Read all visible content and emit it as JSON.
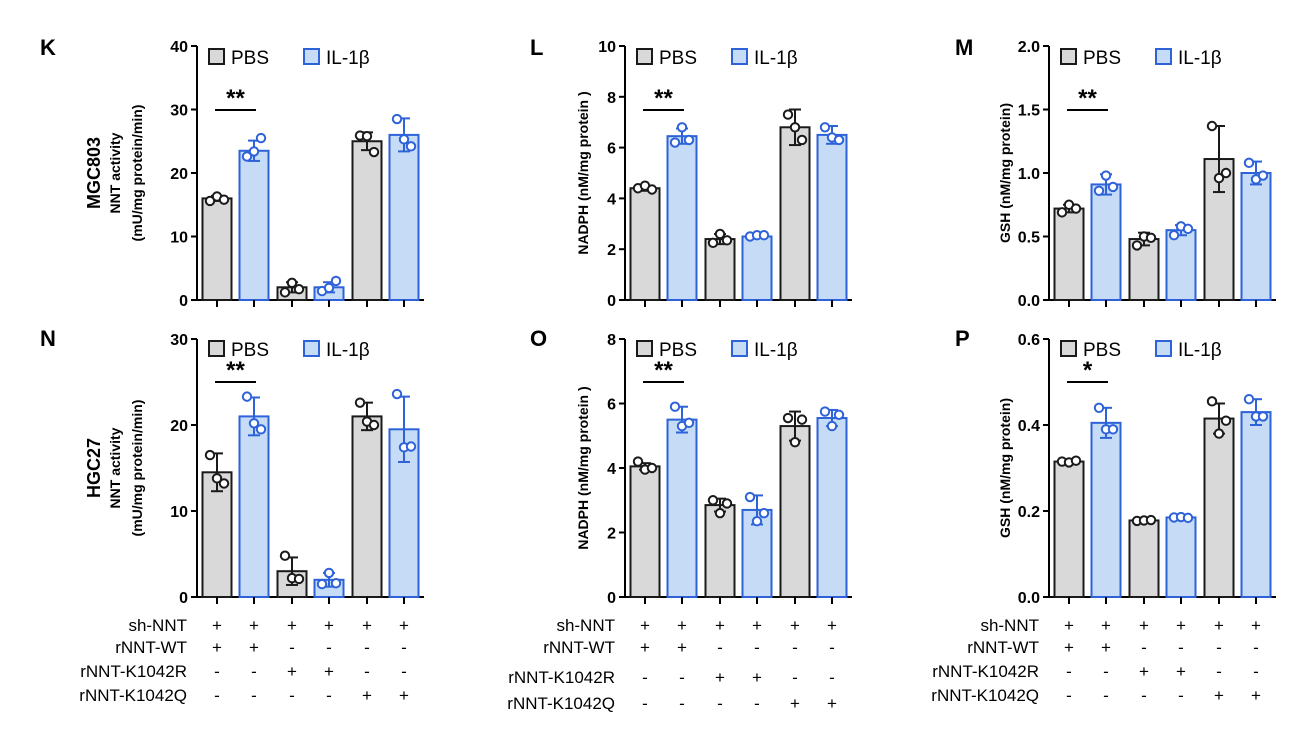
{
  "row_titles": [
    "MGC803",
    "HGC27"
  ],
  "legend": {
    "pbs": "PBS",
    "il1b": "IL-1β"
  },
  "colors": {
    "pbs_fill": "#d9d9d9",
    "pbs_stroke": "#1a1a1a",
    "il1b_fill": "#c6dcf6",
    "il1b_stroke": "#2e62d9"
  },
  "conditions": [
    {
      "label": "sh-NNT",
      "marks": [
        "+",
        "+",
        "+",
        "+",
        "+",
        "+"
      ]
    },
    {
      "label": "rNNT-WT",
      "marks": [
        "+",
        "+",
        "-",
        "-",
        "-",
        "-"
      ]
    },
    {
      "label": "rNNT-K1042R",
      "marks": [
        "-",
        "-",
        "+",
        "+",
        "-",
        "-"
      ]
    },
    {
      "label": "rNNT-K1042Q",
      "marks": [
        "-",
        "-",
        "-",
        "-",
        "+",
        "+"
      ]
    }
  ],
  "chart_data": [
    {
      "panel": "K",
      "type": "bar",
      "ylabel": [
        "NNT activity",
        "(mU/mg protein/min)"
      ],
      "ylim": [
        0,
        40
      ],
      "yticks": [
        "0",
        "10",
        "20",
        "30",
        "40"
      ],
      "groups": [
        "PBS",
        "IL-1β",
        "PBS",
        "IL-1β",
        "PBS",
        "IL-1β"
      ],
      "values": [
        16,
        23.5,
        2,
        2,
        25,
        26
      ],
      "errors": [
        0.4,
        1.6,
        0.8,
        0.8,
        1.4,
        2.6
      ],
      "points": [
        [
          15.6,
          16.3,
          15.8
        ],
        [
          22.6,
          23.4,
          25.5
        ],
        [
          1.2,
          2.7,
          1.7
        ],
        [
          1.4,
          1.9,
          3.0
        ],
        [
          25.9,
          25.8,
          23.3
        ],
        [
          28.5,
          25.3,
          24.2
        ]
      ],
      "significance": "**"
    },
    {
      "panel": "L",
      "type": "bar",
      "ylabel": [
        "NADPH (nM/mg protein )"
      ],
      "ylim": [
        0,
        10
      ],
      "yticks": [
        "0",
        "2",
        "4",
        "6",
        "8",
        "10"
      ],
      "groups": [
        "PBS",
        "IL-1β",
        "PBS",
        "IL-1β",
        "PBS",
        "IL-1β"
      ],
      "values": [
        4.4,
        6.45,
        2.4,
        2.5,
        6.8,
        6.5
      ],
      "errors": [
        0.1,
        0.3,
        0.2,
        0.05,
        0.7,
        0.35
      ],
      "points": [
        [
          4.4,
          4.5,
          4.35
        ],
        [
          6.2,
          6.8,
          6.3
        ],
        [
          2.25,
          2.6,
          2.35
        ],
        [
          2.5,
          2.55,
          2.55
        ],
        [
          7.3,
          6.8,
          6.3
        ],
        [
          6.8,
          6.4,
          6.3
        ]
      ],
      "significance": "**"
    },
    {
      "panel": "M",
      "type": "bar",
      "ylabel": [
        "GSH (nM/mg protein)"
      ],
      "ylim": [
        0,
        2.0
      ],
      "yticks": [
        "0.0",
        "0.5",
        "1.0",
        "1.5",
        "2.0"
      ],
      "groups": [
        "PBS",
        "IL-1β",
        "PBS",
        "IL-1β",
        "PBS",
        "IL-1β"
      ],
      "values": [
        0.72,
        0.91,
        0.48,
        0.55,
        1.11,
        1.0
      ],
      "errors": [
        0.03,
        0.08,
        0.05,
        0.04,
        0.26,
        0.09
      ],
      "points": [
        [
          0.69,
          0.75,
          0.72
        ],
        [
          0.86,
          0.98,
          0.89
        ],
        [
          0.43,
          0.5,
          0.49
        ],
        [
          0.51,
          0.58,
          0.56
        ],
        [
          1.37,
          0.96,
          1.0
        ],
        [
          1.08,
          0.95,
          0.98
        ]
      ],
      "significance": "**"
    },
    {
      "panel": "N",
      "type": "bar",
      "ylabel": [
        "NNT activity",
        "(mU/mg protein/min)"
      ],
      "ylim": [
        0,
        30
      ],
      "yticks": [
        "0",
        "10",
        "20",
        "30"
      ],
      "groups": [
        "PBS",
        "IL-1β",
        "PBS",
        "IL-1β",
        "PBS",
        "IL-1β"
      ],
      "values": [
        14.5,
        21,
        3,
        2,
        21,
        19.5
      ],
      "errors": [
        2.2,
        2.2,
        1.6,
        0.8,
        1.6,
        3.8
      ],
      "points": [
        [
          16.5,
          13.8,
          13.2
        ],
        [
          23.3,
          20.2,
          19.5
        ],
        [
          4.8,
          2.2,
          2.1
        ],
        [
          1.5,
          2.8,
          1.6
        ],
        [
          22.6,
          20.4,
          20.0
        ],
        [
          23.6,
          17.4,
          17.5
        ]
      ],
      "significance": "**"
    },
    {
      "panel": "O",
      "type": "bar",
      "ylabel": [
        "NADPH (nM/mg protein )"
      ],
      "ylim": [
        0,
        8
      ],
      "yticks": [
        "0",
        "2",
        "4",
        "6",
        "8"
      ],
      "groups": [
        "PBS",
        "IL-1β",
        "PBS",
        "IL-1β",
        "PBS",
        "IL-1β"
      ],
      "values": [
        4.05,
        5.5,
        2.85,
        2.7,
        5.3,
        5.55
      ],
      "errors": [
        0.1,
        0.4,
        0.2,
        0.45,
        0.45,
        0.25
      ],
      "points": [
        [
          4.2,
          3.95,
          4.0
        ],
        [
          5.9,
          5.3,
          5.4
        ],
        [
          3.0,
          2.6,
          2.9
        ],
        [
          3.1,
          2.35,
          2.6
        ],
        [
          5.55,
          4.8,
          5.5
        ],
        [
          5.75,
          5.3,
          5.65
        ]
      ],
      "significance": "**"
    },
    {
      "panel": "P",
      "type": "bar",
      "ylabel": [
        "GSH (nM/mg protein)"
      ],
      "ylim": [
        0,
        0.6
      ],
      "yticks": [
        "0.0",
        "0.2",
        "0.4",
        "0.6"
      ],
      "groups": [
        "PBS",
        "IL-1β",
        "PBS",
        "IL-1β",
        "PBS",
        "IL-1β"
      ],
      "values": [
        0.315,
        0.405,
        0.178,
        0.185,
        0.415,
        0.43
      ],
      "errors": [
        0.004,
        0.035,
        0.003,
        0.003,
        0.035,
        0.03
      ],
      "points": [
        [
          0.315,
          0.313,
          0.317
        ],
        [
          0.44,
          0.39,
          0.39
        ],
        [
          0.177,
          0.178,
          0.179
        ],
        [
          0.185,
          0.186,
          0.184
        ],
        [
          0.455,
          0.38,
          0.41
        ],
        [
          0.46,
          0.42,
          0.42
        ]
      ],
      "significance": "*"
    }
  ]
}
